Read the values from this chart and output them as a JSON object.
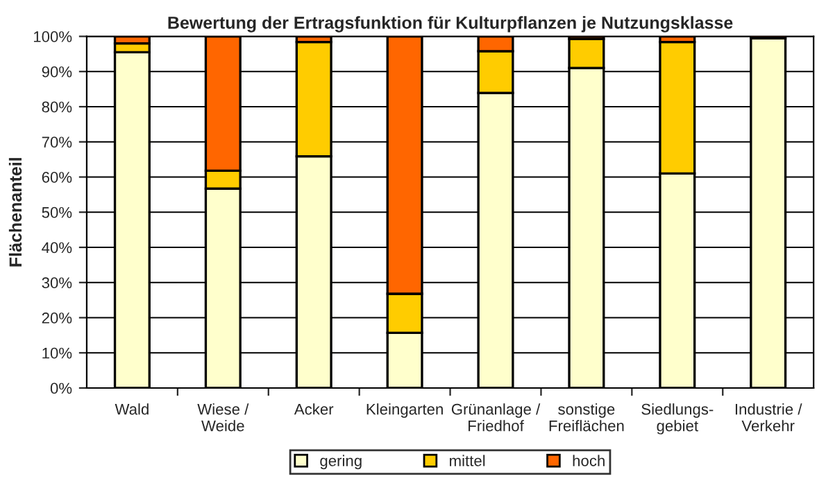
{
  "chart_data": {
    "type": "bar",
    "title": "Bewertung der Ertragsfunktion für Kulturpflanzen je Nutzungsklasse",
    "ylabel": "Flächenanteil",
    "categories": [
      "Wald",
      "Wiese /\nWeide",
      "Acker",
      "Kleingarten",
      "Grünanlage /\nFriedhof",
      "sonstige\nFreiflächen",
      "Siedlungs-\ngebiet",
      "Industrie /\nVerkehr"
    ],
    "stacked": true,
    "series": [
      {
        "name": "gering",
        "color": "#ffffcc",
        "values": [
          95.5,
          56.7,
          65.9,
          15.7,
          83.9,
          91,
          61,
          99.5
        ]
      },
      {
        "name": "mittel",
        "color": "#ffcc00",
        "values": [
          2.5,
          5.1,
          32.5,
          11.1,
          11.9,
          8.3,
          37.4,
          null
        ]
      },
      {
        "name": "hoch",
        "color": "#ff6600",
        "values": [
          2,
          38.2,
          1.6,
          73.2,
          4.2,
          0.7,
          1.6,
          0.5
        ]
      }
    ],
    "ylim": [
      0,
      100
    ],
    "yticks": [
      {
        "value": 0,
        "label": "0%"
      },
      {
        "value": 10,
        "label": "10%"
      },
      {
        "value": 20,
        "label": "20%"
      },
      {
        "value": 30,
        "label": "30%"
      },
      {
        "value": 40,
        "label": "40%"
      },
      {
        "value": 50,
        "label": "50%"
      },
      {
        "value": 60,
        "label": "60%"
      },
      {
        "value": 70,
        "label": "70%"
      },
      {
        "value": 80,
        "label": "80%"
      },
      {
        "value": 90,
        "label": "90%"
      },
      {
        "value": 100,
        "label": "100%"
      }
    ],
    "grid": "y",
    "legend": "bottom"
  }
}
